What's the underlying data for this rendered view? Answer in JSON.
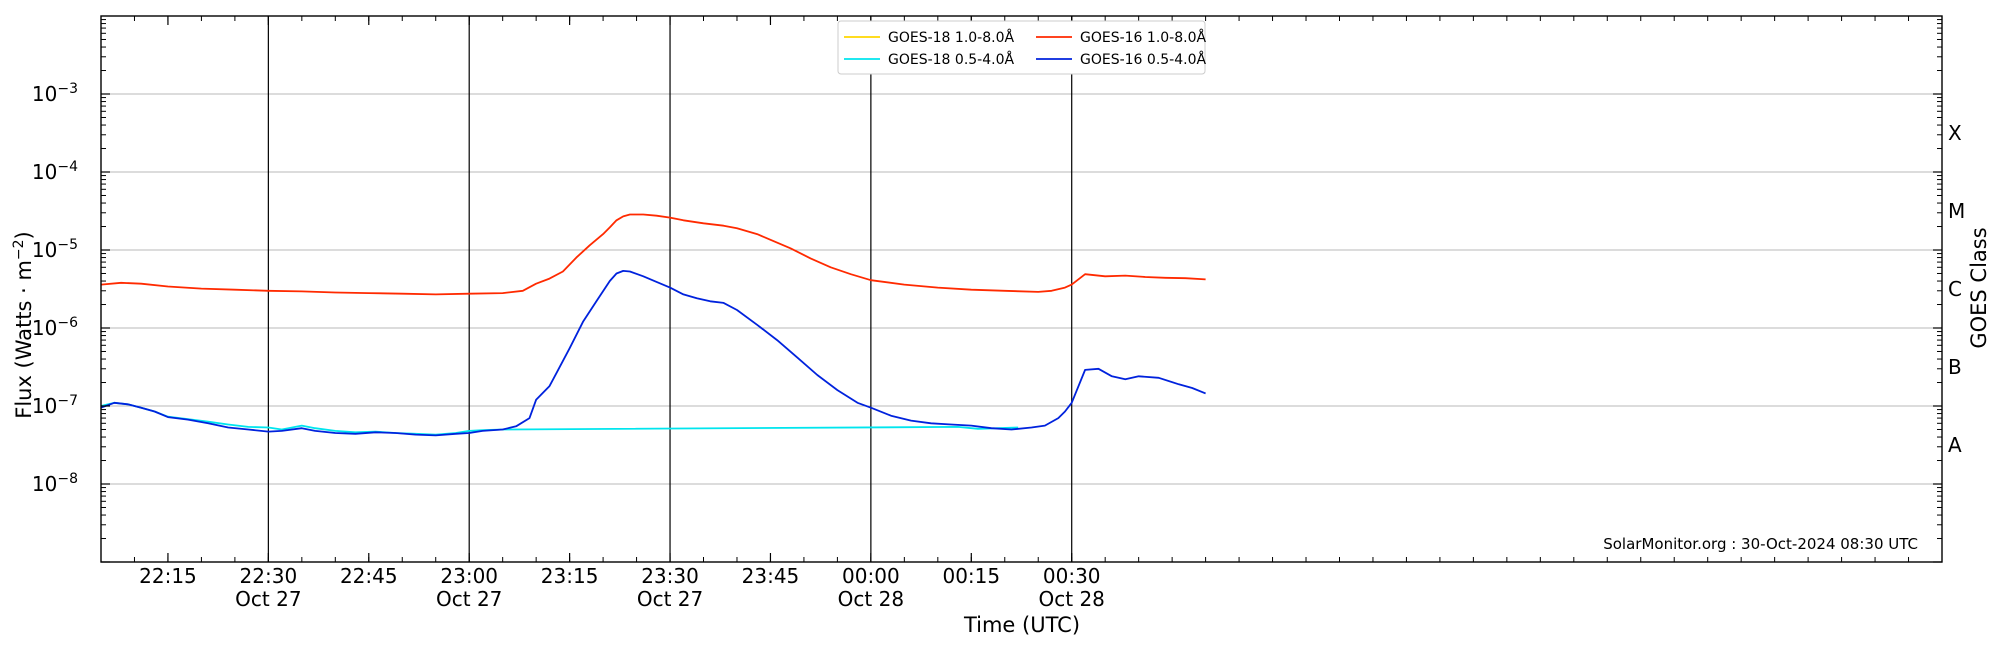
{
  "chart_data": {
    "type": "line",
    "xlabel": "Time (UTC)",
    "ylabel": "Flux (Watts · m^-2)",
    "y2label": "GOES Class",
    "credit": "SolarMonitor.org : 30-Oct-2024 08:30 UTC",
    "yscale": "log",
    "ylim": [
      1e-09,
      0.01
    ],
    "xlim_minutes": [
      1325,
      1600
    ],
    "x_ticks": [
      {
        "t": 1335,
        "time": "22:15",
        "date": ""
      },
      {
        "t": 1350,
        "time": "22:30",
        "date": "Oct 27"
      },
      {
        "t": 1365,
        "time": "22:45",
        "date": ""
      },
      {
        "t": 1380,
        "time": "23:00",
        "date": "Oct 27"
      },
      {
        "t": 1395,
        "time": "23:15",
        "date": ""
      },
      {
        "t": 1410,
        "time": "23:30",
        "date": "Oct 27"
      },
      {
        "t": 1425,
        "time": "23:45",
        "date": ""
      },
      {
        "t": 1440,
        "time": "00:00",
        "date": "Oct 28"
      },
      {
        "t": 1455,
        "time": "00:15",
        "date": ""
      },
      {
        "t": 1470,
        "time": "00:30",
        "date": "Oct 28"
      }
    ],
    "y_ticks": [
      {
        "exp": -8,
        "label": "10",
        "sup": "−8"
      },
      {
        "exp": -7,
        "label": "10",
        "sup": "−7"
      },
      {
        "exp": -6,
        "label": "10",
        "sup": "−6"
      },
      {
        "exp": -5,
        "label": "10",
        "sup": "−5"
      },
      {
        "exp": -4,
        "label": "10",
        "sup": "−4"
      },
      {
        "exp": -3,
        "label": "10",
        "sup": "−3"
      }
    ],
    "goes_classes": [
      {
        "label": "A",
        "exp": -7.5
      },
      {
        "label": "B",
        "exp": -6.5
      },
      {
        "label": "C",
        "exp": -5.5
      },
      {
        "label": "M",
        "exp": -4.5
      },
      {
        "label": "X",
        "exp": -3.5
      }
    ],
    "vertical_lines": [
      1350,
      1380,
      1410,
      1440,
      1470
    ],
    "grid": "horizontal",
    "legend_position": "top-center",
    "series": [
      {
        "name": "GOES-18 1.0-8.0Å",
        "color": "#ffd700",
        "x": [],
        "y": []
      },
      {
        "name": "GOES-16 1.0-8.0Å",
        "color": "#ff2a00",
        "x": [
          1325,
          1328,
          1331,
          1335,
          1340,
          1345,
          1350,
          1355,
          1360,
          1365,
          1370,
          1375,
          1380,
          1385,
          1388,
          1390,
          1392,
          1394,
          1396,
          1398,
          1400,
          1401,
          1402,
          1403,
          1404,
          1406,
          1408,
          1410,
          1412,
          1415,
          1418,
          1420,
          1423,
          1425,
          1428,
          1431,
          1434,
          1437,
          1440,
          1445,
          1450,
          1455,
          1460,
          1465,
          1467,
          1469,
          1470,
          1472,
          1475,
          1478,
          1481,
          1484,
          1487,
          1490
        ],
        "y": [
          3.6e-06,
          3.8e-06,
          3.7e-06,
          3.4e-06,
          3.2e-06,
          3.1e-06,
          3e-06,
          2.95e-06,
          2.85e-06,
          2.8e-06,
          2.75e-06,
          2.7e-06,
          2.75e-06,
          2.8e-06,
          3e-06,
          3.7e-06,
          4.3e-06,
          5.3e-06,
          8e-06,
          1.15e-05,
          1.6e-05,
          1.95e-05,
          2.4e-05,
          2.7e-05,
          2.85e-05,
          2.85e-05,
          2.75e-05,
          2.6e-05,
          2.4e-05,
          2.2e-05,
          2.05e-05,
          1.9e-05,
          1.6e-05,
          1.35e-05,
          1.05e-05,
          7.8e-06,
          6e-06,
          4.9e-06,
          4.1e-06,
          3.6e-06,
          3.3e-06,
          3.1e-06,
          3e-06,
          2.9e-06,
          3e-06,
          3.3e-06,
          3.6e-06,
          4.9e-06,
          4.6e-06,
          4.7e-06,
          4.5e-06,
          4.4e-06,
          4.35e-06,
          4.2e-06
        ]
      },
      {
        "name": "GOES-18 0.5-4.0Å",
        "color": "#00e5ee",
        "x": [
          1325,
          1327,
          1329,
          1331,
          1333,
          1335,
          1338,
          1341,
          1344,
          1347,
          1350,
          1352,
          1355,
          1357,
          1360,
          1363,
          1366,
          1369,
          1372,
          1375,
          1378,
          1380,
          1382,
          1385,
          1453,
          1456,
          1459,
          1462
        ],
        "y": [
          1e-07,
          1.1e-07,
          1.05e-07,
          9.5e-08,
          8.5e-08,
          7.3e-08,
          6.8e-08,
          6.3e-08,
          5.8e-08,
          5.4e-08,
          5.3e-08,
          5e-08,
          5.6e-08,
          5.2e-08,
          4.8e-08,
          4.6e-08,
          4.7e-08,
          4.5e-08,
          4.4e-08,
          4.3e-08,
          4.5e-08,
          4.8e-08,
          4.9e-08,
          5e-08,
          5.4e-08,
          5.1e-08,
          5.2e-08,
          5.3e-08
        ]
      },
      {
        "name": "GOES-16 0.5-4.0Å",
        "color": "#0022dd",
        "x": [
          1325,
          1327,
          1329,
          1331,
          1333,
          1335,
          1338,
          1341,
          1344,
          1347,
          1350,
          1352,
          1355,
          1357,
          1360,
          1363,
          1366,
          1369,
          1372,
          1375,
          1378,
          1380,
          1382,
          1385,
          1387,
          1389,
          1390,
          1392,
          1393,
          1395,
          1397,
          1399,
          1401,
          1402,
          1403,
          1404,
          1406,
          1408,
          1410,
          1412,
          1414,
          1416,
          1418,
          1420,
          1423,
          1426,
          1429,
          1432,
          1435,
          1438,
          1440,
          1443,
          1446,
          1449,
          1452,
          1455,
          1458,
          1461,
          1464,
          1466,
          1468,
          1469,
          1470,
          1472,
          1474,
          1476,
          1478,
          1480,
          1483,
          1486,
          1488,
          1490
        ],
        "y": [
          9.5e-08,
          1.1e-07,
          1.05e-07,
          9.5e-08,
          8.5e-08,
          7.2e-08,
          6.7e-08,
          6e-08,
          5.3e-08,
          5e-08,
          4.7e-08,
          4.8e-08,
          5.2e-08,
          4.8e-08,
          4.5e-08,
          4.4e-08,
          4.6e-08,
          4.5e-08,
          4.3e-08,
          4.2e-08,
          4.4e-08,
          4.5e-08,
          4.8e-08,
          5e-08,
          5.5e-08,
          7e-08,
          1.2e-07,
          1.8e-07,
          2.6e-07,
          5.5e-07,
          1.2e-06,
          2.2e-06,
          4e-06,
          5e-06,
          5.4e-06,
          5.3e-06,
          4.6e-06,
          3.9e-06,
          3.3e-06,
          2.7e-06,
          2.4e-06,
          2.2e-06,
          2.1e-06,
          1.7e-06,
          1.1e-06,
          7e-07,
          4.2e-07,
          2.5e-07,
          1.6e-07,
          1.1e-07,
          9.5e-08,
          7.5e-08,
          6.5e-08,
          6e-08,
          5.8e-08,
          5.6e-08,
          5.2e-08,
          5e-08,
          5.3e-08,
          5.6e-08,
          7e-08,
          8.5e-08,
          1.1e-07,
          2.9e-07,
          3e-07,
          2.4e-07,
          2.2e-07,
          2.4e-07,
          2.3e-07,
          1.9e-07,
          1.7e-07,
          1.45e-07
        ]
      }
    ]
  }
}
